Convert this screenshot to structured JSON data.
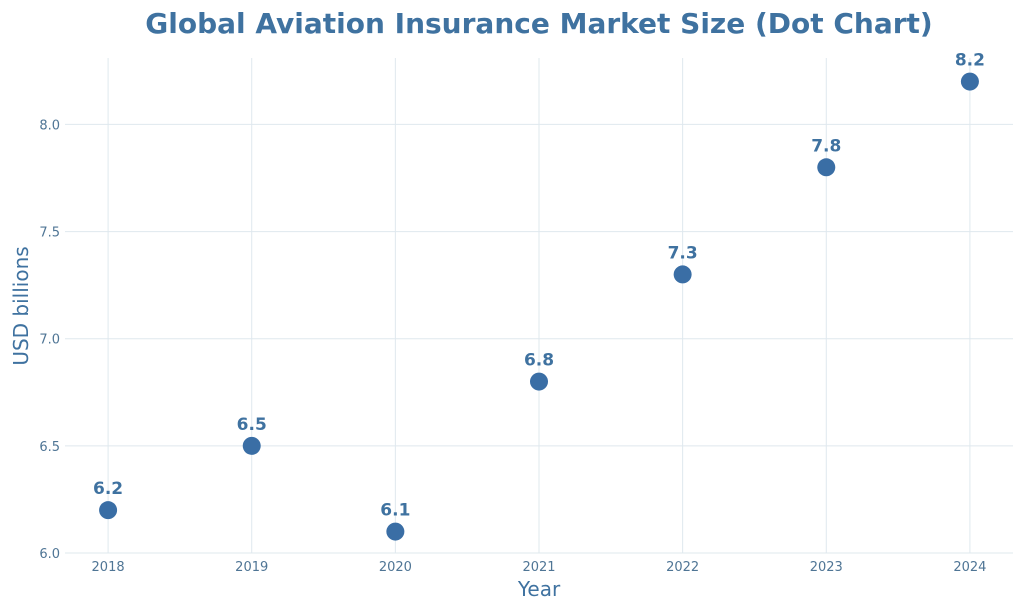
{
  "chart_data": {
    "type": "scatter",
    "title": "Global Aviation Insurance Market Size (Dot Chart)",
    "xlabel": "Year",
    "ylabel": "USD billions",
    "x": [
      2018,
      2019,
      2020,
      2021,
      2022,
      2023,
      2024
    ],
    "values": [
      6.2,
      6.5,
      6.1,
      6.8,
      7.3,
      7.8,
      8.2
    ],
    "data_labels": [
      "6.2",
      "6.5",
      "6.1",
      "6.8",
      "7.3",
      "7.8",
      "8.2"
    ],
    "xticks": [
      "2018",
      "2019",
      "2020",
      "2021",
      "2022",
      "2023",
      "2024"
    ],
    "yticks": [
      "6.0",
      "6.5",
      "7.0",
      "7.5",
      "8.0"
    ],
    "xlim": [
      2017.7,
      2024.3
    ],
    "ylim": [
      6.0,
      8.31
    ],
    "grid": true,
    "colors": {
      "marker": "#3a6ea5",
      "text": "#3f72a0",
      "tick": "#4f7595",
      "grid": "#dfe8ee"
    }
  }
}
